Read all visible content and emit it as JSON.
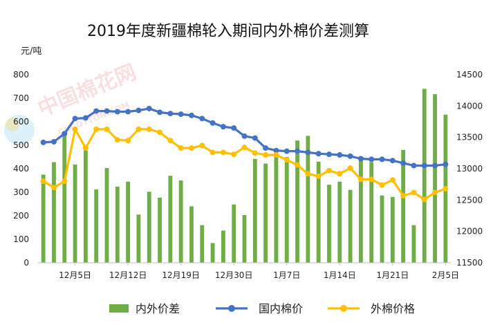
{
  "chart_data": {
    "type": "bar-line-combo",
    "title": "2019年度新疆棉轮入期间内外棉价差测算",
    "y_left_unit": "元/吨",
    "y_left_range": [
      0,
      800
    ],
    "y_left_ticks": [
      0,
      100,
      200,
      300,
      400,
      500,
      600,
      700,
      800
    ],
    "y_right_range": [
      11500,
      14500
    ],
    "y_right_ticks": [
      11500,
      12000,
      12500,
      13000,
      13500,
      14000,
      14500
    ],
    "x_tick_labels": [
      {
        "index": 3,
        "label": "12月5日"
      },
      {
        "index": 8,
        "label": "12月12日"
      },
      {
        "index": 13,
        "label": "12月19日"
      },
      {
        "index": 18,
        "label": "12月30日"
      },
      {
        "index": 23,
        "label": "1月7日"
      },
      {
        "index": 28,
        "label": "1月14日"
      },
      {
        "index": 33,
        "label": "1月21日"
      },
      {
        "index": 38,
        "label": "2月5日"
      }
    ],
    "series": [
      {
        "name": "内外价差",
        "kind": "bar",
        "axis": "left",
        "color": "#70ad47",
        "values": [
          375,
          428,
          545,
          418,
          478,
          312,
          403,
          324,
          345,
          205,
          302,
          277,
          370,
          350,
          240,
          160,
          84,
          137,
          248,
          203,
          442,
          422,
          465,
          450,
          520,
          540,
          430,
          332,
          345,
          310,
          440,
          428,
          286,
          280,
          480,
          160,
          740,
          717,
          630
        ]
      },
      {
        "name": "国内棉价",
        "kind": "line",
        "axis": "right",
        "color": "#4472c4",
        "values": [
          13420,
          13430,
          13560,
          13800,
          13810,
          13920,
          13920,
          13910,
          13910,
          13930,
          13960,
          13900,
          13880,
          13870,
          13850,
          13800,
          13730,
          13670,
          13650,
          13520,
          13490,
          13330,
          13290,
          13280,
          13280,
          13260,
          13240,
          13230,
          13220,
          13200,
          13160,
          13150,
          13150,
          13130,
          13090,
          13050,
          13050,
          13050,
          13070
        ]
      },
      {
        "name": "外棉价格",
        "kind": "line",
        "axis": "right",
        "color": "#ffc000",
        "values": [
          12800,
          12700,
          12800,
          13630,
          13330,
          13630,
          13630,
          13460,
          13450,
          13630,
          13630,
          13580,
          13450,
          13330,
          13330,
          13370,
          13260,
          13260,
          13230,
          13340,
          13250,
          13220,
          13220,
          13140,
          13060,
          12920,
          12880,
          12970,
          12920,
          13010,
          12830,
          12830,
          12740,
          12820,
          12570,
          12620,
          12510,
          12620,
          12680
        ]
      }
    ],
    "legend_position": "bottom",
    "grid": false
  },
  "watermark": {
    "text": "中国棉花网",
    "subtext": "CNCOTTON.COM"
  }
}
